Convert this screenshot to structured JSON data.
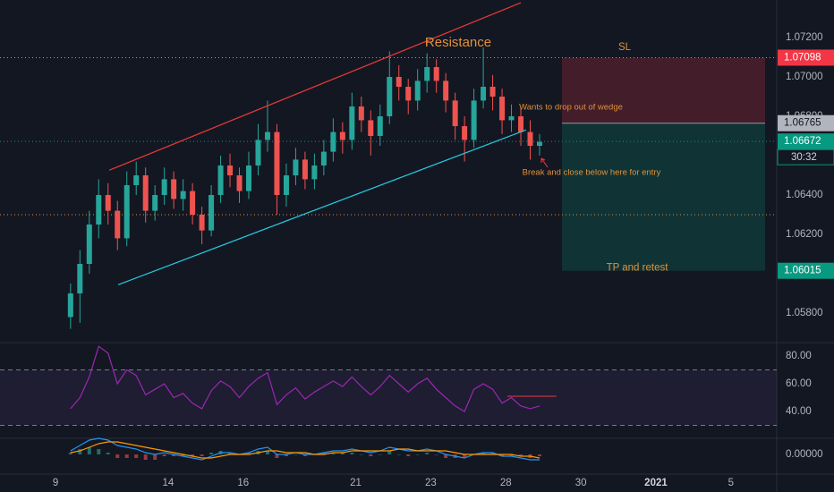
{
  "chart_data": {
    "type": "candlestick",
    "x": [
      0.4,
      0.65,
      0.9,
      1.15,
      1.4,
      1.65,
      1.9,
      2.15,
      2.4,
      2.65,
      2.9,
      3.15,
      3.4,
      3.65,
      3.9,
      4.15,
      4.4,
      4.65,
      4.9,
      5.15,
      5.4,
      5.65,
      5.9,
      6.15,
      6.4,
      6.65,
      6.9,
      7.15,
      7.4,
      7.65,
      7.9,
      8.15,
      8.4,
      8.65,
      8.9,
      9.15,
      9.4,
      9.65,
      9.9,
      10.15,
      10.4,
      10.65,
      10.9,
      11.15,
      11.4,
      11.65,
      11.9,
      12.15,
      12.4,
      12.65,
      12.9
    ],
    "open": [
      1.0578,
      1.059,
      1.0605,
      1.0625,
      1.064,
      1.0632,
      1.0618,
      1.0645,
      1.065,
      1.0632,
      1.064,
      1.0648,
      1.0638,
      1.0642,
      1.063,
      1.0622,
      1.064,
      1.0655,
      1.065,
      1.0642,
      1.0655,
      1.0668,
      1.0672,
      1.064,
      1.065,
      1.0658,
      1.0648,
      1.0655,
      1.0662,
      1.0672,
      1.0668,
      1.0685,
      1.0678,
      1.067,
      1.068,
      1.07,
      1.0695,
      1.0688,
      1.0698,
      1.0705,
      1.0698,
      1.0688,
      1.0675,
      1.0668,
      1.0688,
      1.0695,
      1.069,
      1.0678,
      1.068,
      1.0672,
      1.0665
    ],
    "high": [
      1.0595,
      1.0612,
      1.0632,
      1.0648,
      1.0646,
      1.0637,
      1.0652,
      1.0657,
      1.0654,
      1.0645,
      1.0654,
      1.0652,
      1.0648,
      1.0646,
      1.0634,
      1.0645,
      1.066,
      1.0661,
      1.0654,
      1.0662,
      1.0676,
      1.0688,
      1.0676,
      1.0656,
      1.0664,
      1.0662,
      1.0661,
      1.0668,
      1.0679,
      1.0677,
      1.0692,
      1.069,
      1.0683,
      1.0686,
      1.0713,
      1.0706,
      1.0699,
      1.0704,
      1.0712,
      1.0709,
      1.0702,
      1.0692,
      1.068,
      1.0694,
      1.0715,
      1.0701,
      1.0694,
      1.0686,
      1.0684,
      1.0678,
      1.0671
    ],
    "low": [
      1.0572,
      1.0575,
      1.06,
      1.0618,
      1.0625,
      1.0612,
      1.0614,
      1.064,
      1.0626,
      1.0627,
      1.0635,
      1.0633,
      1.0632,
      1.0625,
      1.0615,
      1.0619,
      1.0636,
      1.0644,
      1.0636,
      1.0638,
      1.065,
      1.0662,
      1.063,
      1.0634,
      1.0645,
      1.0643,
      1.0643,
      1.065,
      1.0657,
      1.0661,
      1.0663,
      1.0672,
      1.066,
      1.0665,
      1.0676,
      1.0688,
      1.0681,
      1.0683,
      1.0692,
      1.0692,
      1.0682,
      1.0668,
      1.0657,
      1.0664,
      1.0684,
      1.0683,
      1.0671,
      1.0672,
      1.0665,
      1.0658,
      1.066
    ],
    "close": [
      1.059,
      1.0605,
      1.0625,
      1.064,
      1.0632,
      1.0618,
      1.0645,
      1.065,
      1.0632,
      1.064,
      1.0648,
      1.0638,
      1.0642,
      1.063,
      1.0622,
      1.064,
      1.0655,
      1.065,
      1.0642,
      1.0655,
      1.0668,
      1.0672,
      1.064,
      1.065,
      1.0658,
      1.0648,
      1.0655,
      1.0662,
      1.0672,
      1.0668,
      1.0685,
      1.0678,
      1.067,
      1.068,
      1.07,
      1.0695,
      1.0688,
      1.0698,
      1.0705,
      1.0698,
      1.0688,
      1.0675,
      1.0668,
      1.0688,
      1.0695,
      1.069,
      1.0678,
      1.068,
      1.0672,
      1.0665,
      1.0667
    ],
    "up_color": "#26a69a",
    "down_color": "#ef5350",
    "xlim": [
      -1.48,
      19.22
    ],
    "xticks": [
      {
        "value": 0,
        "label": "9"
      },
      {
        "value": 3,
        "label": "14"
      },
      {
        "value": 5,
        "label": "16"
      },
      {
        "value": 8,
        "label": "21"
      },
      {
        "value": 10,
        "label": "23"
      },
      {
        "value": 12,
        "label": "28"
      },
      {
        "value": 14,
        "label": "30"
      },
      {
        "value": 16,
        "label": "2021",
        "bold": true
      },
      {
        "value": 18,
        "label": "5"
      }
    ],
    "ylim": [
      1.0565,
      1.07391
    ],
    "yticks": [
      {
        "value": 1.072,
        "label": "1.07200"
      },
      {
        "value": 1.07,
        "label": "1.07000"
      },
      {
        "value": 1.068,
        "label": "1.06800"
      },
      {
        "value": 1.066,
        "label": "1.06600"
      },
      {
        "value": 1.064,
        "label": "1.06400"
      },
      {
        "value": 1.062,
        "label": "1.06200"
      },
      {
        "value": 1.06,
        "label": "1.06000"
      },
      {
        "value": 1.058,
        "label": "1.05800"
      }
    ],
    "grid": false,
    "price_labels": [
      {
        "value": 1.07098,
        "color": "#f23645",
        "text_color": "#ffffff",
        "line_color": "#e0913a"
      },
      {
        "value": 1.06765,
        "color": "#b2b5be",
        "text_color": "#131722"
      },
      {
        "value": 1.06672,
        "color": "#089981",
        "text_color": "#ffffff",
        "line_color": "#089981",
        "countdown": "30:32"
      },
      {
        "value": 1.06015,
        "color": "#089981",
        "text_color": "#ffffff"
      }
    ],
    "levels": [
      {
        "value": 1.063,
        "color": "#e0913a"
      }
    ],
    "trendlines": [
      {
        "color": "#e53935",
        "points": [
          [
            1.43,
            1.06526
          ],
          [
            12.4,
            1.07377
          ]
        ]
      },
      {
        "color": "#26c6da",
        "points": [
          [
            1.67,
            1.05944
          ],
          [
            12.54,
            1.06731
          ]
        ]
      }
    ],
    "annotations": [
      "Resistance",
      "Wants to drop out of wedge",
      "Break and close below here for entry"
    ],
    "position": {
      "stop_label": "SL",
      "target_label": "TP and retest"
    },
    "panes": [
      {
        "type": "line",
        "ylim": [
          20.65,
          89.68
        ],
        "yticks": [
          {
            "value": 80,
            "label": "80.00"
          },
          {
            "value": 60,
            "label": "60.00"
          },
          {
            "value": 40,
            "label": "40.00"
          }
        ],
        "bands": [
          30,
          70
        ],
        "series": [
          {
            "color": "#9c27b0",
            "values": [
              42,
              50,
              65,
              87,
              82,
              60,
              70,
              66,
              52,
              56,
              60,
              50,
              53,
              46,
              42,
              55,
              62,
              58,
              50,
              58,
              64,
              68,
              45,
              52,
              57,
              49,
              54,
              58,
              62,
              58,
              65,
              58,
              52,
              58,
              66,
              60,
              54,
              60,
              64,
              56,
              50,
              44,
              40,
              56,
              60,
              56,
              46,
              50,
              44,
              42,
              44
            ]
          }
        ],
        "levels": [
          {
            "value": 51,
            "x": [
              12.04,
              13.35
            ],
            "color": "#f23645"
          }
        ]
      },
      {
        "type": "line",
        "ylim": [
          -0.0011,
          0.0009
        ],
        "yticks": [
          {
            "value": 0,
            "label": "0.00000"
          }
        ],
        "series": [
          {
            "color": "#2196f3",
            "values": [
              0.0002,
              0.0005,
              0.0008,
              0.0009,
              0.0008,
              0.0005,
              0.0004,
              0.0003,
              0.0001,
              0,
              0.0001,
              0,
              -0.0001,
              -0.0002,
              -0.0003,
              -0.0001,
              0.0001,
              0.0001,
              0,
              0.0001,
              0.0003,
              0.0004,
              0,
              0,
              0.0001,
              0,
              0,
              0.0001,
              0.0002,
              0.0002,
              0.0003,
              0.0002,
              0.0001,
              0.0002,
              0.0004,
              0.0003,
              0.0002,
              0.0002,
              0.0003,
              0.0002,
              0,
              -0.0001,
              -0.0002,
              0,
              0.0001,
              0.0001,
              -0.0001,
              -0.0001,
              -0.0002,
              -0.0003,
              -0.0003
            ]
          },
          {
            "color": "#ff9800",
            "values": [
              0.0001,
              0.0002,
              0.0004,
              0.0006,
              0.0007,
              0.0007,
              0.0006,
              0.0005,
              0.0004,
              0.0003,
              0.0002,
              0.0001,
              0,
              -0.0001,
              -0.0002,
              -0.0002,
              -0.0001,
              0,
              0,
              0,
              0.0001,
              0.0002,
              0.0002,
              0.0001,
              0.0001,
              0.0001,
              0,
              0,
              0.0001,
              0.0001,
              0.0002,
              0.0002,
              0.0002,
              0.0002,
              0.0002,
              0.0003,
              0.0003,
              0.0002,
              0.0002,
              0.0002,
              0.0002,
              0.0001,
              0,
              0,
              0,
              0,
              0,
              0,
              -0.0001,
              -0.0001,
              -0.0002
            ]
          }
        ],
        "histogram": {
          "up_color": "#26a69a",
          "down_color": "#ef5350",
          "values": [
            0.0001,
            0.0003,
            0.0004,
            0.0003,
            0.0001,
            -0.0002,
            -0.0002,
            -0.0002,
            -0.0003,
            -0.0003,
            -0.0001,
            -0.0001,
            -0.0001,
            -0.0001,
            -0.0001,
            0.0001,
            0.0002,
            0.0001,
            0,
            0.0001,
            0.0002,
            0.0002,
            -0.0002,
            -0.0001,
            0,
            -0.0001,
            0,
            0.0001,
            0.0001,
            0.0001,
            0.0001,
            0,
            -0.0001,
            0,
            0.0002,
            0,
            -0.0001,
            0,
            0.0001,
            0,
            -0.0002,
            -0.0002,
            -0.0002,
            0,
            0.0001,
            0.0001,
            -0.0001,
            -0.0001,
            -0.0001,
            -0.0002,
            -0.0001
          ]
        }
      }
    ]
  }
}
